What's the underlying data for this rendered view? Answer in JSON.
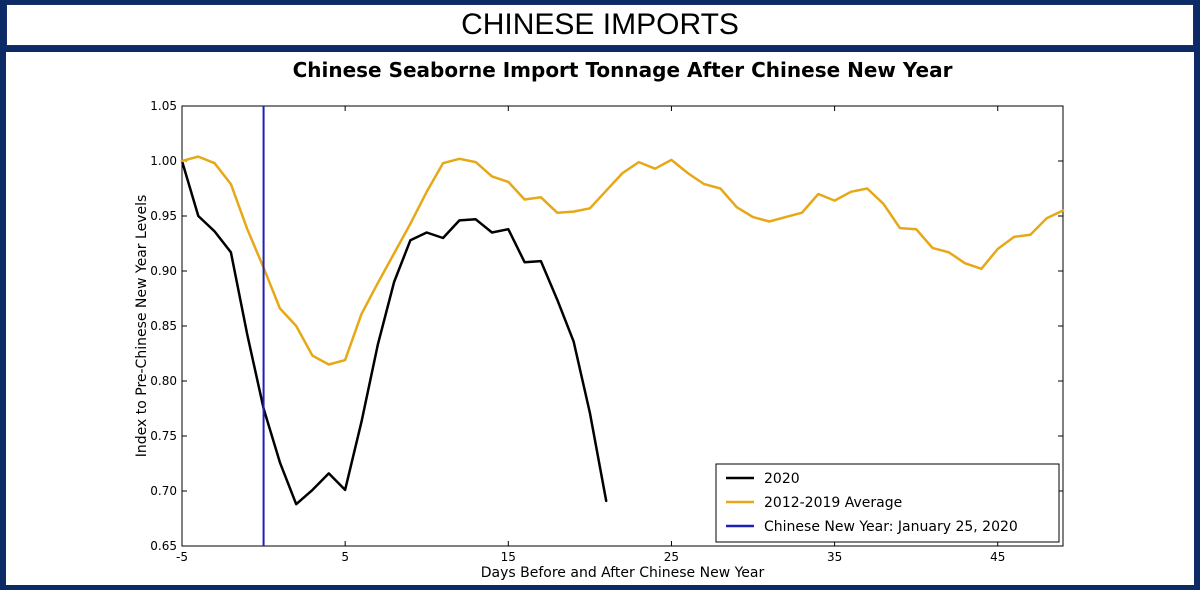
{
  "header": {
    "title": "CHINESE IMPORTS"
  },
  "chart_data": {
    "type": "line",
    "title": "Chinese Seaborne Import Tonnage After Chinese New Year",
    "xlabel": "Days Before and After Chinese New Year",
    "ylabel": "Index to Pre-Chinese New Year Levels",
    "xlim": [
      -5,
      49
    ],
    "ylim": [
      0.65,
      1.05
    ],
    "xticks": [
      -5,
      5,
      15,
      25,
      35,
      45
    ],
    "xtick_labels": [
      "-5",
      "5",
      "15",
      "25",
      "35",
      "45"
    ],
    "yticks": [
      0.65,
      0.7,
      0.75,
      0.8,
      0.85,
      0.9,
      0.95,
      1.0,
      1.05
    ],
    "ytick_labels": [
      "0.65",
      "0.70",
      "0.75",
      "0.80",
      "0.85",
      "0.90",
      "0.95",
      "1.00",
      "1.05"
    ],
    "grid": false,
    "legend_position": "bottom-right",
    "vline": {
      "x": 0,
      "name": "Chinese New Year: January 25, 2020",
      "color": "#1f1fb4"
    },
    "series": [
      {
        "name": "2020",
        "color": "#000000",
        "x": [
          -5,
          -4,
          -3,
          -2,
          -1,
          0,
          1,
          2,
          3,
          4,
          5,
          6,
          7,
          8,
          9,
          10,
          11,
          12,
          13,
          14,
          15,
          16,
          17,
          18,
          19,
          20,
          21
        ],
        "y": [
          1.0,
          0.95,
          0.936,
          0.917,
          0.842,
          0.775,
          0.726,
          0.688,
          0.701,
          0.716,
          0.701,
          0.763,
          0.833,
          0.89,
          0.928,
          0.935,
          0.93,
          0.946,
          0.947,
          0.935,
          0.938,
          0.908,
          0.909,
          0.874,
          0.836,
          0.771,
          0.691
        ]
      },
      {
        "name": "2012-2019 Average",
        "color": "#e6a817",
        "x": [
          -5,
          -4,
          -3,
          -2,
          -1,
          0,
          1,
          2,
          3,
          4,
          5,
          6,
          7,
          8,
          9,
          10,
          11,
          12,
          13,
          14,
          15,
          16,
          17,
          18,
          19,
          20,
          21,
          22,
          23,
          24,
          25,
          26,
          27,
          28,
          29,
          30,
          31,
          32,
          33,
          34,
          35,
          36,
          37,
          38,
          39,
          40,
          41,
          42,
          43,
          44,
          45,
          46,
          47,
          48,
          49
        ],
        "y": [
          1.0,
          1.004,
          0.998,
          0.979,
          0.938,
          0.903,
          0.866,
          0.85,
          0.823,
          0.815,
          0.819,
          0.861,
          0.889,
          0.916,
          0.943,
          0.972,
          0.998,
          1.002,
          0.999,
          0.986,
          0.981,
          0.965,
          0.967,
          0.953,
          0.954,
          0.957,
          0.973,
          0.989,
          0.999,
          0.993,
          1.001,
          0.989,
          0.979,
          0.975,
          0.958,
          0.949,
          0.945,
          0.949,
          0.953,
          0.97,
          0.964,
          0.972,
          0.975,
          0.961,
          0.939,
          0.938,
          0.921,
          0.917,
          0.907,
          0.902,
          0.92,
          0.931,
          0.933,
          0.948,
          0.955
        ]
      }
    ]
  }
}
